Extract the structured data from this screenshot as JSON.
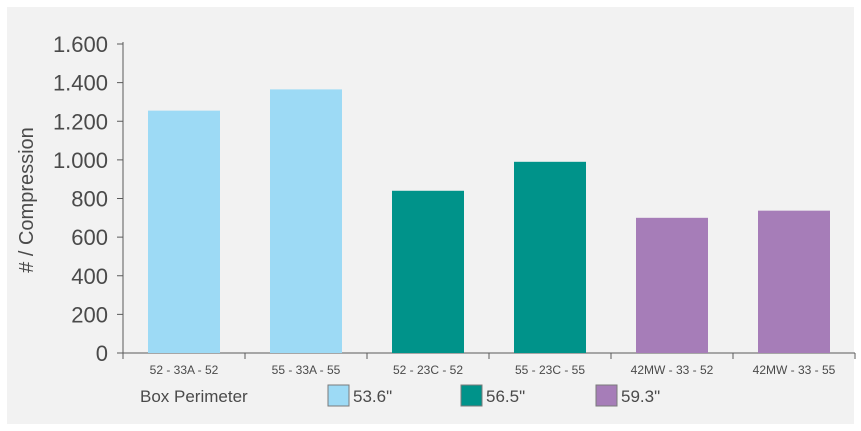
{
  "chart_data": {
    "type": "bar",
    "title": "",
    "ylabel": "# / Compression",
    "xlabel": "",
    "ylim": [
      0,
      1600
    ],
    "yticks": [
      0,
      200,
      400,
      600,
      800,
      1000,
      1200,
      1400,
      1600
    ],
    "ytick_labels": [
      "0",
      "200",
      "400",
      "600",
      "800",
      "1.000",
      "1.200",
      "1.400",
      "1.600"
    ],
    "categories": [
      "52 - 33A - 52",
      "55 - 33A - 55",
      "52 - 23C - 52",
      "55 - 23C - 55",
      "42MW - 33 - 52",
      "42MW - 33 - 55"
    ],
    "values": [
      1255,
      1365,
      840,
      990,
      700,
      737
    ],
    "bar_groups": [
      "53.6\"",
      "53.6\"",
      "56.5\"",
      "56.5\"",
      "59.3\"",
      "59.3\""
    ],
    "legend": {
      "title": "Box Perimeter",
      "placement": "bottom",
      "entries": [
        {
          "label": "53.6\"",
          "color": "#9ddaf5"
        },
        {
          "label": "56.5\"",
          "color": "#00938a"
        },
        {
          "label": "59.3\"",
          "color": "#a67db8"
        }
      ]
    },
    "grid": false
  }
}
